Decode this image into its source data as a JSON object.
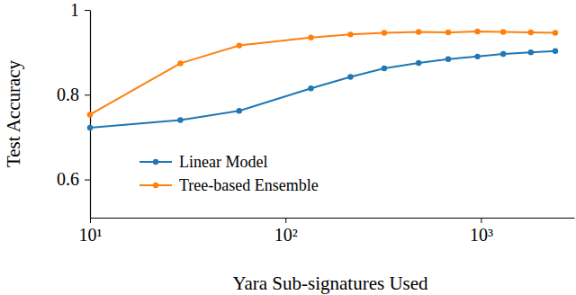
{
  "chart_data": {
    "type": "line",
    "x_label": "Yara Sub-signatures Used",
    "y_label": "Test Accuracy",
    "x": [
      10,
      29,
      58,
      135,
      215,
      320,
      480,
      680,
      960,
      1300,
      1800,
      2400
    ],
    "series": [
      {
        "name": "Linear Model",
        "color": "#1f77b4",
        "marker": "circle",
        "values": [
          0.722,
          0.74,
          0.762,
          0.815,
          0.842,
          0.862,
          0.875,
          0.884,
          0.89,
          0.896,
          0.9,
          0.903
        ]
      },
      {
        "name": "Tree-based Ensemble",
        "color": "#ff7f0e",
        "marker": "circle",
        "values": [
          0.753,
          0.874,
          0.916,
          0.935,
          0.942,
          0.946,
          0.948,
          0.947,
          0.949,
          0.948,
          0.947,
          0.946
        ]
      }
    ],
    "log": "x",
    "xlim": [
      10,
      3000
    ],
    "xticks": [
      {
        "value": 10,
        "label": "10¹"
      },
      {
        "value": 100,
        "label": "10²"
      },
      {
        "value": 1000,
        "label": "10³"
      }
    ],
    "ylim": [
      0.51,
      1
    ],
    "yticks": [
      0.6,
      0.8,
      1
    ],
    "legend": "lower left",
    "grid": false
  }
}
